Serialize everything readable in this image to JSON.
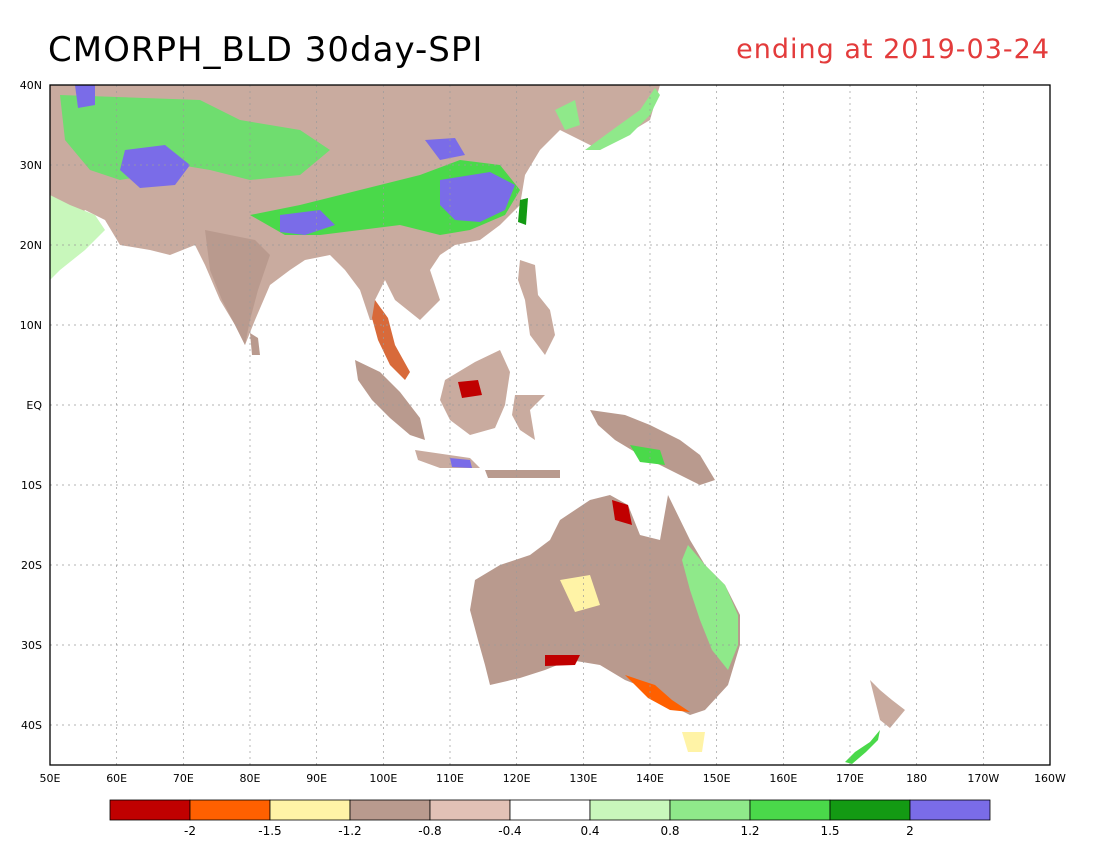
{
  "header": {
    "title": "CMORPH_BLD 30day-SPI",
    "subtitle": "ending at 2019-03-24"
  },
  "map": {
    "lon_range": [
      50,
      200
    ],
    "lat_range": [
      -45,
      40
    ],
    "lat_labels": [
      "40N",
      "30N",
      "20N",
      "10N",
      "EQ",
      "10S",
      "20S",
      "30S",
      "40S"
    ],
    "lon_labels": [
      "50E",
      "60E",
      "70E",
      "80E",
      "90E",
      "100E",
      "110E",
      "120E",
      "130E",
      "140E",
      "150E",
      "160E",
      "170E",
      "180",
      "170W",
      "160W"
    ],
    "grid": true
  },
  "legend": {
    "colors": [
      "#c00000",
      "#ff6000",
      "#fff3a6",
      "#b99a8e",
      "#e2c1b6",
      "#ffffff",
      "#c8f7bb",
      "#8fe98a",
      "#4ad94a",
      "#139a13",
      "#7a6ce8"
    ],
    "tick_labels": [
      "-2",
      "-1.5",
      "-1.2",
      "-0.8",
      "-0.4",
      "0.4",
      "0.8",
      "1.2",
      "1.5",
      "2"
    ]
  }
}
